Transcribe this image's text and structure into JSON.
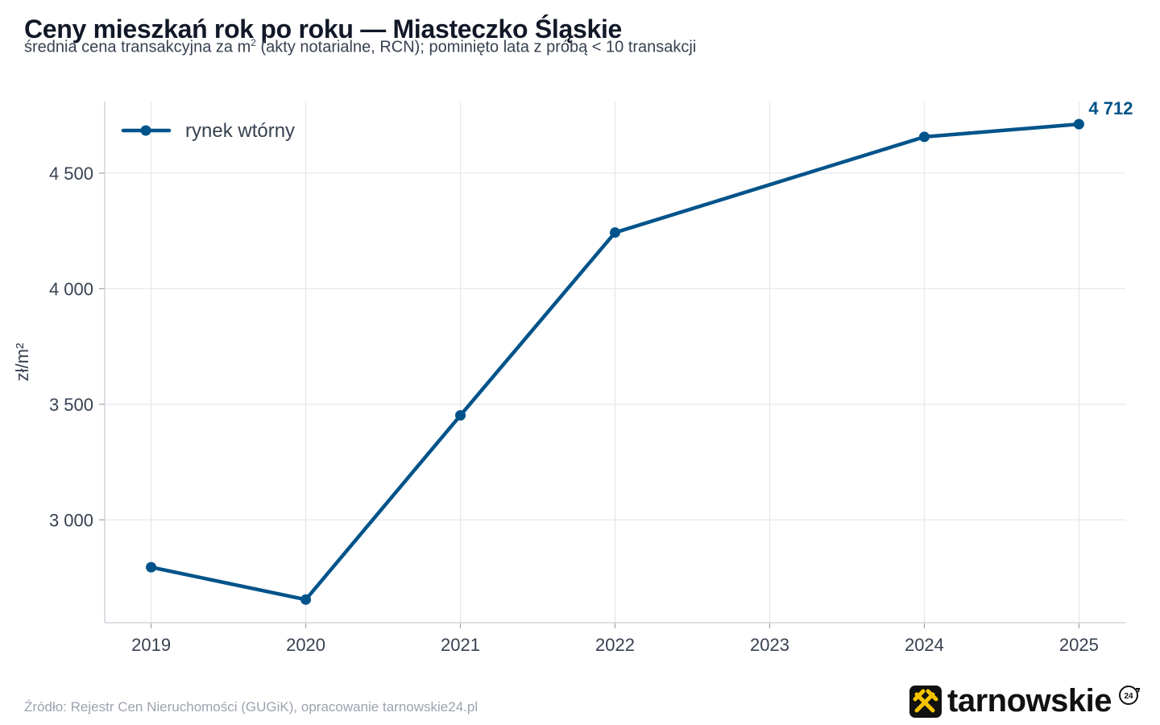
{
  "header": {
    "title": "Ceny mieszkań rok po roku — Miasteczko Śląskie",
    "subtitle_pre": "średnia cena transakcyjna za m",
    "subtitle_sup": "2",
    "subtitle_post": " (akty notarialne, RCN); pominięto lata z próbą < 10 transakcji"
  },
  "footer": {
    "source": "Źródło: Rejestr Cen Nieruchomości (GUGiK), opracowanie tarnowskie24.pl",
    "brand": "tarnowskie",
    "brand_badge": "24"
  },
  "colors": {
    "series": "#00538a",
    "grid": "#e5e7eb",
    "tick_text": "#374151",
    "logo_bg": "#111111",
    "logo_mark": "#f5c400"
  },
  "chart_data": {
    "type": "line",
    "title": "Ceny mieszkań rok po roku — Miasteczko Śląskie",
    "subtitle": "średnia cena transakcyjna za m² (akty notarialne, RCN); pominięto lata z próbą < 10 transakcji",
    "xlabel": "",
    "ylabel": "zł/m²",
    "x": [
      2019,
      2020,
      2021,
      2022,
      2024,
      2025
    ],
    "x_ticks": [
      "2019",
      "2020",
      "2021",
      "2022",
      "2023",
      "2024",
      "2025"
    ],
    "xlim": [
      2018.7,
      2025.3
    ],
    "y_ticks": [
      3000,
      3500,
      4000,
      4500
    ],
    "y_tick_labels": [
      "3 000",
      "3 500",
      "4 000",
      "4 500"
    ],
    "ylim": [
      2555,
      4810
    ],
    "series": [
      {
        "name": "rynek wtórny",
        "values": [
          2795,
          2655,
          3452,
          4243,
          4657,
          4712
        ]
      }
    ],
    "annotations": [
      {
        "x": 2025,
        "y": 4712,
        "text": "4 712"
      }
    ],
    "legend": "top-left",
    "grid": true
  }
}
